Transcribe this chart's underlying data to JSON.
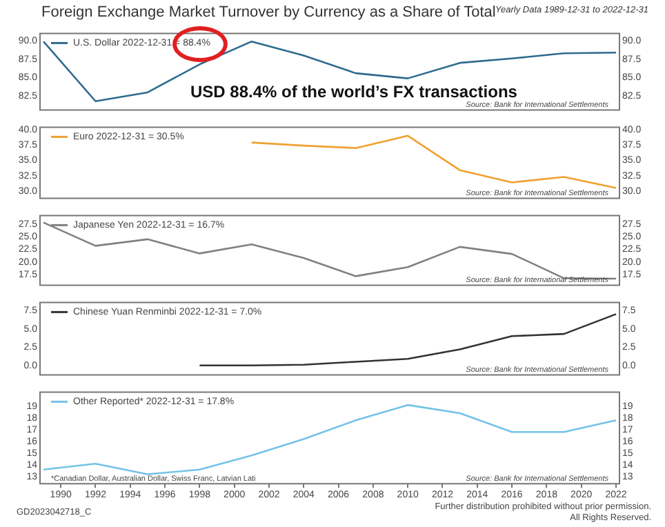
{
  "chart_data": [
    {
      "type": "line",
      "title": "Foreign Exchange Market Turnover by Currency as a Share of Total",
      "subtitle": "Yearly Data 1989-12-31 to 2022-12-31",
      "series": [
        {
          "name": "U.S. Dollar 2022-12-31 = 88.4%",
          "color": "#2e6a8e",
          "x": [
            1989,
            1992,
            1995,
            1998,
            2001,
            2004,
            2007,
            2010,
            2013,
            2016,
            2019,
            2022
          ],
          "values": [
            89.9,
            81.8,
            83.0,
            86.8,
            89.9,
            88.0,
            85.6,
            84.9,
            87.0,
            87.6,
            88.3,
            88.4
          ]
        }
      ],
      "xlim": [
        1988.8,
        2022.2
      ],
      "xticks": [
        1990,
        1992,
        1994,
        1996,
        1998,
        2000,
        2002,
        2004,
        2006,
        2008,
        2010,
        2012,
        2014,
        2016,
        2018,
        2020,
        2022
      ],
      "ylim": [
        80.6,
        91.0
      ],
      "yticks": [
        {
          "value": 82.5,
          "label": "82.5"
        },
        {
          "value": 85,
          "label": "85.0"
        },
        {
          "value": 87.5,
          "label": "87.5"
        },
        {
          "value": 90,
          "label": "90.0"
        }
      ],
      "y2lim": [
        80.6,
        91.0
      ],
      "y2ticks": [
        {
          "value": 82.5,
          "label": "82.5"
        },
        {
          "value": 85,
          "label": "85.0"
        },
        {
          "value": 87.5,
          "label": "87.5"
        },
        {
          "value": 90,
          "label": "90.0"
        }
      ],
      "tick_labels": "y",
      "legend": "top left",
      "annotations": [
        "USD 88.4% of the world’s FX transactions",
        "Source: Bank for International Settlements"
      ]
    },
    {
      "type": "line",
      "series": [
        {
          "name": "Euro 2022-12-31 = 30.5%",
          "color": "#f0a030",
          "x": [
            2001,
            2004,
            2007,
            2010,
            2013,
            2016,
            2019,
            2022
          ],
          "values": [
            37.9,
            37.4,
            37.0,
            39.0,
            33.4,
            31.4,
            32.3,
            30.5
          ]
        }
      ],
      "xlim": [
        1988.8,
        2022.2
      ],
      "xticks": [
        1990,
        1992,
        1994,
        1996,
        1998,
        2000,
        2002,
        2004,
        2006,
        2008,
        2010,
        2012,
        2014,
        2016,
        2018,
        2020,
        2022
      ],
      "ylim": [
        28.8,
        40.4
      ],
      "yticks": [
        {
          "value": 30,
          "label": "30.0"
        },
        {
          "value": 32.5,
          "label": "32.5"
        },
        {
          "value": 35,
          "label": "35.0"
        },
        {
          "value": 37.5,
          "label": "37.5"
        },
        {
          "value": 40,
          "label": "40.0"
        }
      ],
      "y2lim": [
        28.8,
        40.4
      ],
      "y2ticks": [
        {
          "value": 30,
          "label": "30.0"
        },
        {
          "value": 32.5,
          "label": "32.5"
        },
        {
          "value": 35,
          "label": "35.0"
        },
        {
          "value": 37.5,
          "label": "37.5"
        },
        {
          "value": 40,
          "label": "40.0"
        }
      ],
      "tick_labels": "y",
      "legend": "top left",
      "annotations": [
        "Source: Bank for International Settlements"
      ]
    },
    {
      "type": "line",
      "series": [
        {
          "name": "Japanese Yen 2022-12-31 = 16.7%",
          "color": "#808080",
          "x": [
            1989,
            1992,
            1995,
            1998,
            2001,
            2004,
            2007,
            2010,
            2013,
            2016,
            2019,
            2022
          ],
          "values": [
            27.8,
            23.2,
            24.5,
            21.7,
            23.5,
            20.8,
            17.2,
            19.0,
            23.0,
            21.6,
            16.8,
            16.7
          ]
        }
      ],
      "xlim": [
        1988.8,
        2022.2
      ],
      "xticks": [
        1990,
        1992,
        1994,
        1996,
        1998,
        2000,
        2002,
        2004,
        2006,
        2008,
        2010,
        2012,
        2014,
        2016,
        2018,
        2020,
        2022
      ],
      "ylim": [
        15.4,
        29.2
      ],
      "yticks": [
        {
          "value": 17.5,
          "label": "17.5"
        },
        {
          "value": 20,
          "label": "20.0"
        },
        {
          "value": 22.5,
          "label": "22.5"
        },
        {
          "value": 25,
          "label": "25.0"
        },
        {
          "value": 27.5,
          "label": "27.5"
        }
      ],
      "y2lim": [
        15.4,
        29.2
      ],
      "y2ticks": [
        {
          "value": 17.5,
          "label": "17.5"
        },
        {
          "value": 20,
          "label": "20.0"
        },
        {
          "value": 22.5,
          "label": "22.5"
        },
        {
          "value": 25,
          "label": "25.0"
        },
        {
          "value": 27.5,
          "label": "27.5"
        }
      ],
      "tick_labels": "y",
      "legend": "top left",
      "annotations": [
        "Source: Bank for International Settlements"
      ]
    },
    {
      "type": "line",
      "series": [
        {
          "name": "Chinese Yuan Renminbi 2022-12-31 = 7.0%",
          "color": "#333333",
          "x": [
            1998,
            2001,
            2004,
            2007,
            2010,
            2013,
            2016,
            2019,
            2022
          ],
          "values": [
            0.0,
            0.0,
            0.1,
            0.5,
            0.9,
            2.2,
            4.0,
            4.3,
            7.0
          ]
        }
      ],
      "xlim": [
        1988.8,
        2022.2
      ],
      "xticks": [
        1990,
        1992,
        1994,
        1996,
        1998,
        2000,
        2002,
        2004,
        2006,
        2008,
        2010,
        2012,
        2014,
        2016,
        2018,
        2020,
        2022
      ],
      "ylim": [
        -1.3,
        8.6
      ],
      "yticks": [
        {
          "value": 0,
          "label": "0.0"
        },
        {
          "value": 2.5,
          "label": "2.5"
        },
        {
          "value": 5,
          "label": "5.0"
        },
        {
          "value": 7.5,
          "label": "7.5"
        }
      ],
      "y2lim": [
        -1.3,
        8.6
      ],
      "y2ticks": [
        {
          "value": 0,
          "label": "0.0"
        },
        {
          "value": 2.5,
          "label": "2.5"
        },
        {
          "value": 5,
          "label": "5.0"
        },
        {
          "value": 7.5,
          "label": "7.5"
        }
      ],
      "tick_labels": "y",
      "legend": "top left",
      "annotations": [
        "Source: Bank for International Settlements"
      ]
    },
    {
      "type": "line",
      "series": [
        {
          "name": "Other Reported* 2022-12-31 = 17.8%",
          "color": "#74c2e8",
          "x": [
            1989,
            1992,
            1995,
            1998,
            2001,
            2004,
            2007,
            2010,
            2013,
            2016,
            2019,
            2022
          ],
          "values": [
            13.6,
            14.1,
            13.2,
            13.6,
            14.8,
            16.2,
            17.8,
            19.1,
            18.4,
            16.8,
            16.8,
            17.8
          ]
        }
      ],
      "xlim": [
        1988.8,
        2022.2
      ],
      "xticks": [
        1990,
        1992,
        1994,
        1996,
        1998,
        2000,
        2002,
        2004,
        2006,
        2008,
        2010,
        2012,
        2014,
        2016,
        2018,
        2020,
        2022
      ],
      "ylim": [
        12.4,
        20.2
      ],
      "yticks": [
        13,
        14,
        15,
        16,
        17,
        18,
        19
      ],
      "y2lim": [
        12.4,
        20.2
      ],
      "y2ticks": [
        13,
        14,
        15,
        16,
        17,
        18,
        19
      ],
      "legend": "top left",
      "annotations": [
        "*Canadian Dollar, Australian Dollar, Swiss Franc, Latvian Lati",
        "Source: Bank for International Settlements",
        "GD2023042718_C",
        "Further distribution prohibited without prior permission.",
        "All Rights Reserved."
      ]
    }
  ]
}
